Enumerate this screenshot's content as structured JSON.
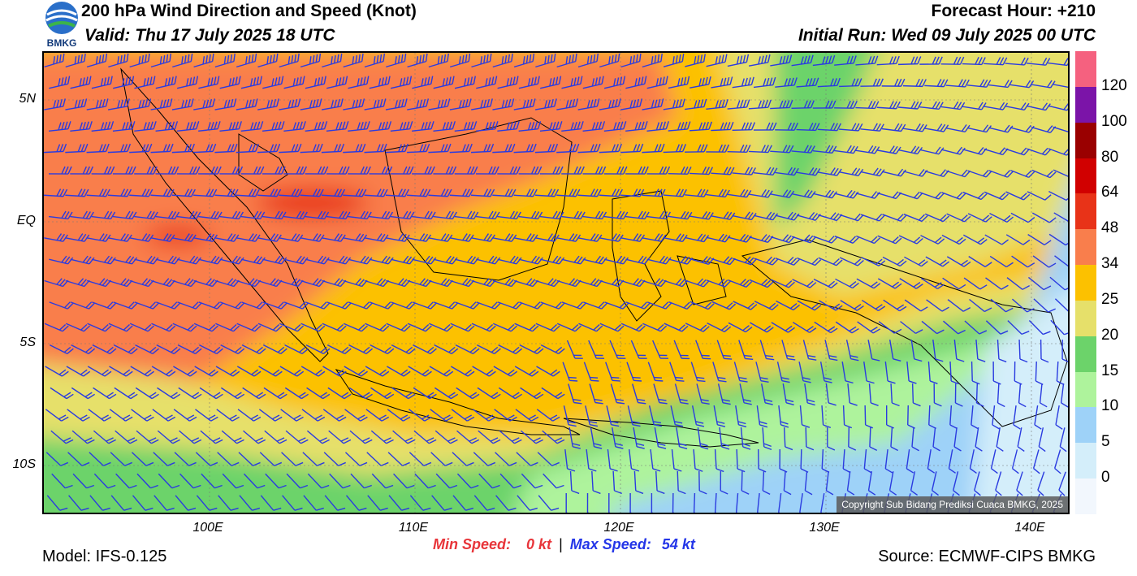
{
  "header": {
    "title": "200 hPa Wind Direction and Speed (Knot)",
    "valid": "Valid: Thu 17 July 2025 18 UTC",
    "forecast_hour": "Forecast Hour: +210",
    "initial_run": "Initial Run: Wed 09 July 2025 00 UTC",
    "logo_text": "BMKG"
  },
  "map": {
    "lat_labels": [
      "5N",
      "EQ",
      "5S",
      "10S"
    ],
    "lon_labels": [
      "100E",
      "110E",
      "120E",
      "130E",
      "140E"
    ],
    "copyright": "Copyright Sub Bidang Prediksi Cuaca BMKG, 2025"
  },
  "colorbar": {
    "labels": [
      "120",
      "100",
      "80",
      "64",
      "48",
      "34",
      "25",
      "20",
      "15",
      "10",
      "5",
      "0"
    ],
    "colors": [
      "#f5617f",
      "#7b14a8",
      "#9a0000",
      "#d10000",
      "#e83318",
      "#f97e4c",
      "#fcc100",
      "#e6e06a",
      "#6cd36a",
      "#aef39c",
      "#9ed2f8",
      "#d4eefa",
      "#f2f7fd"
    ]
  },
  "footer": {
    "min_label": "Min Speed:",
    "min_value": "0 kt",
    "separator": "|",
    "max_label": "Max Speed:",
    "max_value": "54 kt",
    "model": "Model: IFS-0.125",
    "source": "Source: ECMWF-CIPS BMKG"
  }
}
